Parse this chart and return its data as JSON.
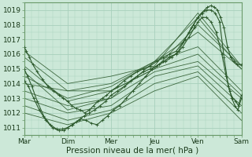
{
  "xlabel": "Pression niveau de la mer( hPa )",
  "background_color": "#cce8d8",
  "grid_color": "#a8d0bc",
  "line_color": "#2d5a2d",
  "xlim": [
    0,
    5
  ],
  "ylim": [
    1010.5,
    1019.5
  ],
  "yticks": [
    1011,
    1012,
    1013,
    1014,
    1015,
    1016,
    1017,
    1018,
    1019
  ],
  "xtick_labels": [
    "Mar",
    "Dim",
    "Mer",
    "Jeu",
    "Ven",
    "Sam"
  ],
  "xtick_positions": [
    0,
    1,
    2,
    3,
    4,
    5
  ],
  "straight_series": [
    [
      1016.2,
      1014.0,
      1014.5,
      1015.2,
      1018.8,
      1015.2
    ],
    [
      1015.8,
      1013.5,
      1014.0,
      1015.5,
      1018.5,
      1015.0
    ],
    [
      1015.2,
      1012.8,
      1013.5,
      1015.0,
      1018.0,
      1015.2
    ],
    [
      1014.8,
      1012.2,
      1013.0,
      1015.5,
      1017.5,
      1015.0
    ],
    [
      1014.5,
      1013.0,
      1013.8,
      1015.5,
      1016.5,
      1013.5
    ],
    [
      1014.0,
      1013.5,
      1013.5,
      1015.0,
      1016.0,
      1013.2
    ],
    [
      1013.5,
      1012.5,
      1013.0,
      1014.8,
      1015.5,
      1013.0
    ],
    [
      1013.0,
      1012.0,
      1012.5,
      1014.5,
      1015.2,
      1012.5
    ],
    [
      1012.5,
      1011.5,
      1012.2,
      1014.0,
      1014.8,
      1012.0
    ],
    [
      1012.0,
      1011.2,
      1012.0,
      1013.5,
      1014.5,
      1011.5
    ]
  ],
  "detail_series": [
    {
      "x": [
        0.0,
        0.05,
        0.12,
        0.2,
        0.3,
        0.42,
        0.55,
        0.68,
        0.8,
        0.9,
        1.0,
        1.1,
        1.2,
        1.3,
        1.4,
        1.5,
        1.6,
        1.7,
        1.8,
        1.9,
        2.0,
        2.15,
        2.3,
        2.45,
        2.6,
        2.75,
        2.9,
        3.05,
        3.2,
        3.35,
        3.5,
        3.65,
        3.8,
        3.9,
        4.0,
        4.08,
        4.15,
        4.22,
        4.3,
        4.38,
        4.45,
        4.52,
        4.6,
        4.68,
        4.75,
        4.82,
        4.9,
        5.0
      ],
      "y": [
        1016.5,
        1016.2,
        1015.8,
        1015.3,
        1014.8,
        1014.3,
        1013.8,
        1013.5,
        1013.2,
        1013.0,
        1012.8,
        1012.5,
        1012.3,
        1012.2,
        1012.0,
        1012.2,
        1012.5,
        1012.8,
        1013.0,
        1013.2,
        1013.5,
        1013.8,
        1014.2,
        1014.5,
        1014.8,
        1015.0,
        1015.2,
        1015.5,
        1015.8,
        1016.0,
        1016.2,
        1016.8,
        1017.5,
        1018.0,
        1018.5,
        1018.8,
        1019.0,
        1019.2,
        1019.3,
        1019.2,
        1019.0,
        1018.5,
        1017.8,
        1016.5,
        1015.8,
        1015.5,
        1015.3,
        1015.3
      ]
    },
    {
      "x": [
        0.0,
        0.08,
        0.18,
        0.3,
        0.45,
        0.6,
        0.75,
        0.88,
        1.0,
        1.1,
        1.2,
        1.3,
        1.42,
        1.55,
        1.68,
        1.8,
        1.92,
        2.05,
        2.2,
        2.35,
        2.5,
        2.65,
        2.8,
        2.95,
        3.1,
        3.25,
        3.4,
        3.55,
        3.7,
        3.85,
        4.0,
        4.1,
        4.2,
        4.3,
        4.4,
        4.5,
        4.6,
        4.7,
        4.78,
        4.85,
        4.92,
        5.0
      ],
      "y": [
        1015.0,
        1014.5,
        1013.8,
        1012.8,
        1011.8,
        1011.2,
        1010.9,
        1010.9,
        1011.0,
        1011.2,
        1011.4,
        1011.6,
        1011.5,
        1011.3,
        1011.2,
        1011.5,
        1011.8,
        1012.2,
        1012.5,
        1013.0,
        1013.5,
        1014.0,
        1014.5,
        1015.0,
        1015.3,
        1015.5,
        1015.8,
        1016.2,
        1017.0,
        1017.8,
        1018.5,
        1018.8,
        1019.0,
        1019.0,
        1018.8,
        1018.2,
        1015.8,
        1013.8,
        1013.0,
        1012.5,
        1012.2,
        1013.0
      ]
    },
    {
      "x": [
        0.0,
        0.1,
        0.22,
        0.35,
        0.5,
        0.65,
        0.8,
        0.92,
        1.0,
        1.12,
        1.25,
        1.38,
        1.5,
        1.62,
        1.75,
        1.88,
        2.0,
        2.15,
        2.3,
        2.45,
        2.6,
        2.75,
        2.9,
        3.05,
        3.2,
        3.35,
        3.5,
        3.65,
        3.8,
        3.92,
        4.0,
        4.1,
        4.2,
        4.3,
        4.42,
        4.55,
        4.65,
        4.73,
        4.8,
        4.87,
        4.93,
        5.0
      ],
      "y": [
        1014.2,
        1013.8,
        1013.0,
        1012.2,
        1011.5,
        1011.0,
        1010.8,
        1010.8,
        1011.0,
        1011.2,
        1011.5,
        1011.8,
        1012.0,
        1012.2,
        1012.5,
        1012.8,
        1013.2,
        1013.5,
        1013.8,
        1014.2,
        1014.5,
        1014.8,
        1015.0,
        1015.2,
        1015.5,
        1015.8,
        1016.0,
        1016.5,
        1017.2,
        1017.8,
        1018.2,
        1018.5,
        1018.5,
        1018.2,
        1017.5,
        1016.0,
        1014.5,
        1013.5,
        1013.0,
        1012.8,
        1012.5,
        1013.2
      ]
    }
  ]
}
